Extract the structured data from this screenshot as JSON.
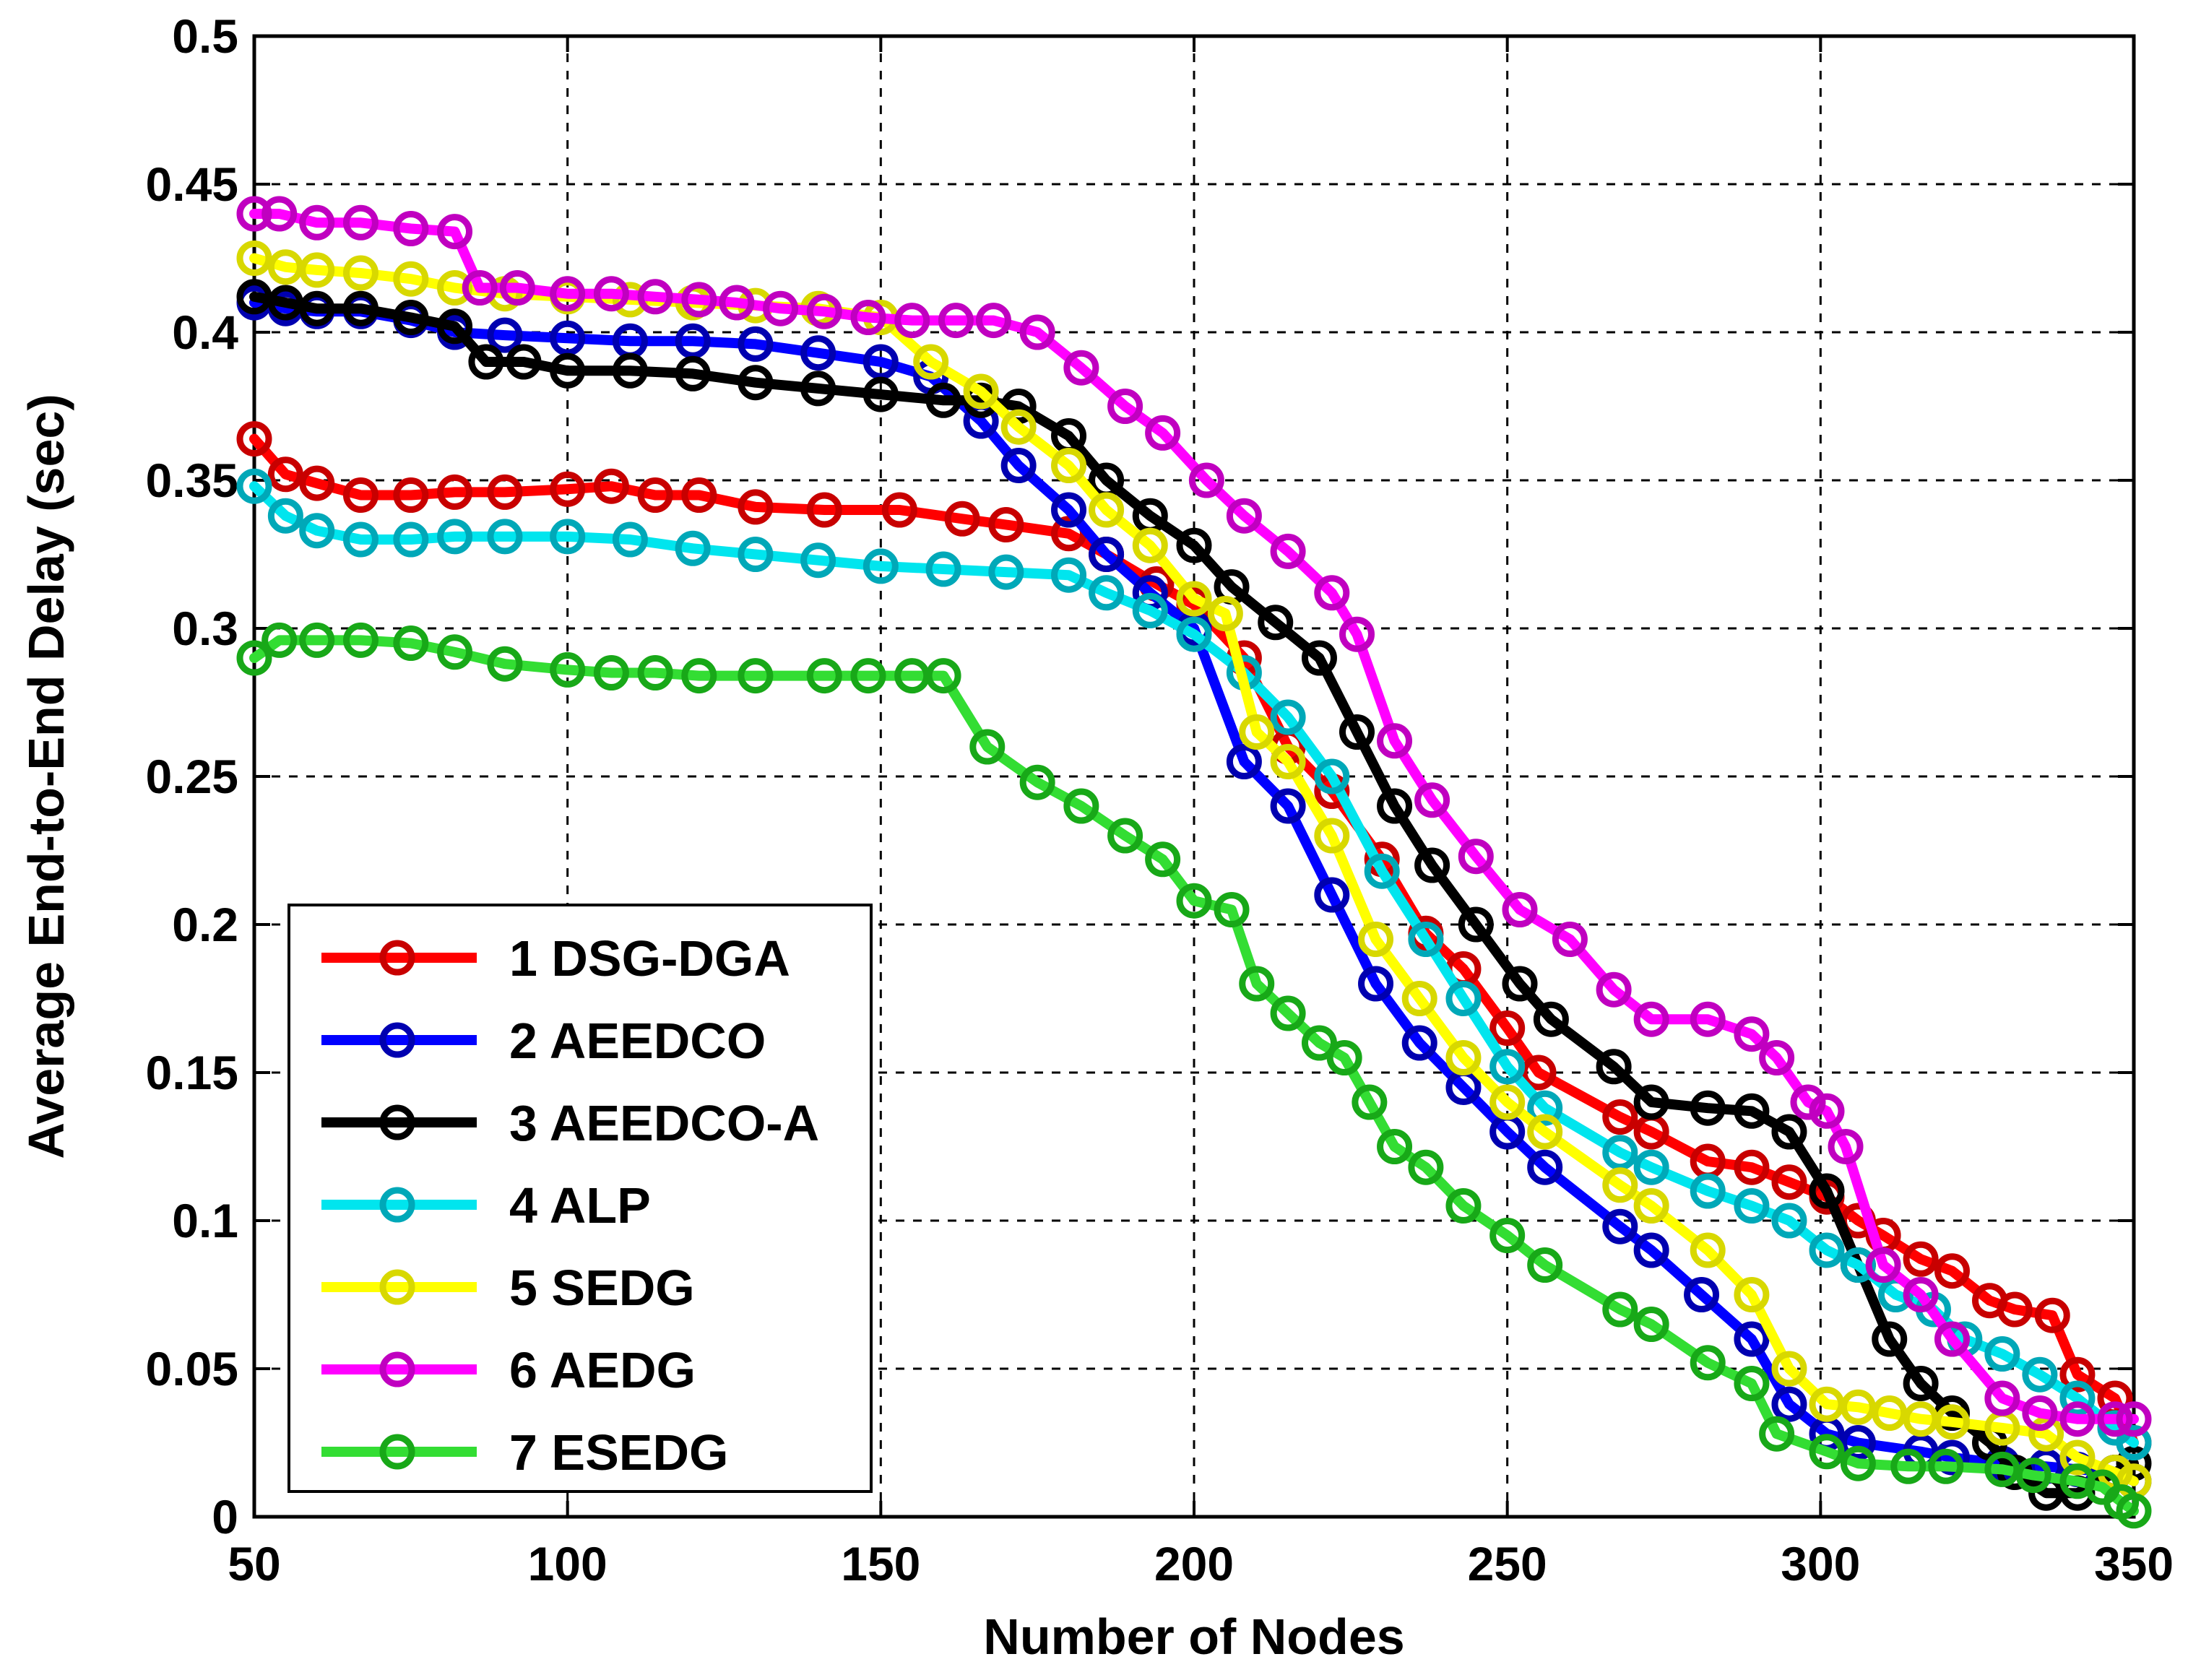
{
  "chart_data": {
    "type": "line",
    "title": "",
    "xlabel": "Number of Nodes",
    "ylabel": "Average End-to-End Delay (sec)",
    "xlim": [
      50,
      350
    ],
    "ylim": [
      0,
      0.5
    ],
    "grid": true,
    "legend_position": "bottom-left",
    "x_ticks": [
      50,
      100,
      150,
      200,
      250,
      300,
      350
    ],
    "x_tick_labels": [
      "50",
      "100",
      "150",
      "200",
      "250",
      "300",
      "350"
    ],
    "y_ticks": [
      0,
      0.05,
      0.1,
      0.15,
      0.2,
      0.25,
      0.3,
      0.35,
      0.4,
      0.45,
      0.5
    ],
    "y_tick_labels": [
      "0",
      "0.05",
      "0.1",
      "0.15",
      "0.2",
      "0.25",
      "0.3",
      "0.35",
      "0.4",
      "0.45",
      "0.5"
    ],
    "series": [
      {
        "name": "1 DSG-DGA",
        "color": "#ff0000",
        "x": [
          50,
          55,
          60,
          67,
          75,
          82,
          90,
          100,
          107,
          114,
          121,
          130,
          141,
          153,
          163,
          170,
          180,
          186,
          194,
          200,
          208,
          215,
          222,
          230,
          237,
          243,
          250,
          255,
          268,
          273,
          282,
          289,
          295,
          301,
          306,
          310,
          316,
          321,
          327,
          331,
          337,
          341,
          347,
          350
        ],
        "y": [
          0.364,
          0.352,
          0.349,
          0.345,
          0.345,
          0.346,
          0.346,
          0.347,
          0.348,
          0.345,
          0.345,
          0.341,
          0.34,
          0.34,
          0.337,
          0.335,
          0.332,
          0.325,
          0.315,
          0.308,
          0.29,
          0.26,
          0.245,
          0.222,
          0.197,
          0.185,
          0.165,
          0.15,
          0.135,
          0.13,
          0.12,
          0.118,
          0.113,
          0.108,
          0.1,
          0.095,
          0.087,
          0.083,
          0.073,
          0.07,
          0.068,
          0.048,
          0.04,
          0.025
        ]
      },
      {
        "name": "2 AEEDCO",
        "color": "#0000ff",
        "x": [
          50,
          55,
          60,
          67,
          75,
          82,
          90,
          100,
          110,
          120,
          130,
          140,
          150,
          158,
          166,
          172,
          180,
          186,
          193,
          200,
          208,
          215,
          222,
          229,
          236,
          243,
          250,
          256,
          268,
          273,
          281,
          289,
          295,
          301,
          306,
          316,
          321,
          329,
          336,
          341,
          347,
          350
        ],
        "y": [
          0.41,
          0.408,
          0.407,
          0.407,
          0.404,
          0.4,
          0.399,
          0.398,
          0.397,
          0.397,
          0.396,
          0.393,
          0.39,
          0.385,
          0.37,
          0.355,
          0.34,
          0.325,
          0.312,
          0.3,
          0.255,
          0.24,
          0.21,
          0.18,
          0.16,
          0.145,
          0.13,
          0.118,
          0.098,
          0.09,
          0.075,
          0.06,
          0.038,
          0.028,
          0.025,
          0.022,
          0.02,
          0.018,
          0.017,
          0.016,
          0.015,
          0.012
        ]
      },
      {
        "name": "3 AEEDCO-A",
        "color": "#000000",
        "x": [
          50,
          55,
          60,
          67,
          75,
          82,
          87,
          93,
          100,
          110,
          120,
          130,
          140,
          150,
          160,
          166,
          172,
          180,
          186,
          193,
          200,
          206,
          213,
          220,
          226,
          232,
          238,
          245,
          252,
          257,
          267,
          273,
          282,
          289,
          295,
          301,
          306,
          311,
          316,
          321,
          327,
          331,
          336,
          341,
          347,
          350
        ],
        "y": [
          0.412,
          0.41,
          0.408,
          0.408,
          0.405,
          0.402,
          0.39,
          0.39,
          0.387,
          0.387,
          0.386,
          0.383,
          0.381,
          0.379,
          0.377,
          0.377,
          0.375,
          0.365,
          0.35,
          0.338,
          0.328,
          0.314,
          0.302,
          0.29,
          0.265,
          0.24,
          0.22,
          0.2,
          0.18,
          0.168,
          0.152,
          0.14,
          0.138,
          0.137,
          0.13,
          0.11,
          0.085,
          0.06,
          0.045,
          0.035,
          0.025,
          0.015,
          0.008,
          0.008,
          0.015,
          0.018
        ]
      },
      {
        "name": "4 ALP",
        "color": "#00e5ee",
        "x": [
          50,
          55,
          60,
          67,
          75,
          82,
          90,
          100,
          110,
          120,
          130,
          140,
          150,
          160,
          170,
          180,
          186,
          193,
          200,
          208,
          215,
          222,
          230,
          237,
          243,
          250,
          256,
          268,
          273,
          282,
          289,
          295,
          301,
          306,
          312,
          318,
          323,
          329,
          335,
          341,
          347,
          350
        ],
        "y": [
          0.348,
          0.338,
          0.333,
          0.33,
          0.33,
          0.331,
          0.331,
          0.331,
          0.33,
          0.327,
          0.325,
          0.323,
          0.321,
          0.32,
          0.319,
          0.318,
          0.312,
          0.306,
          0.298,
          0.285,
          0.27,
          0.25,
          0.218,
          0.195,
          0.175,
          0.152,
          0.138,
          0.123,
          0.118,
          0.11,
          0.105,
          0.1,
          0.09,
          0.085,
          0.075,
          0.07,
          0.06,
          0.055,
          0.048,
          0.04,
          0.03,
          0.025
        ]
      },
      {
        "name": "5 SEDG",
        "color": "#ffff00",
        "x": [
          50,
          55,
          60,
          67,
          75,
          82,
          90,
          100,
          110,
          120,
          130,
          140,
          150,
          158,
          166,
          172,
          180,
          186,
          193,
          200,
          205,
          210,
          215,
          222,
          229,
          236,
          243,
          250,
          256,
          268,
          273,
          282,
          289,
          295,
          301,
          306,
          311,
          316,
          321,
          329,
          336,
          341,
          347,
          350
        ],
        "y": [
          0.425,
          0.422,
          0.421,
          0.42,
          0.418,
          0.415,
          0.413,
          0.412,
          0.411,
          0.41,
          0.409,
          0.408,
          0.405,
          0.39,
          0.38,
          0.368,
          0.355,
          0.34,
          0.328,
          0.31,
          0.305,
          0.265,
          0.255,
          0.23,
          0.195,
          0.175,
          0.155,
          0.14,
          0.13,
          0.112,
          0.105,
          0.09,
          0.075,
          0.05,
          0.038,
          0.037,
          0.035,
          0.033,
          0.032,
          0.03,
          0.028,
          0.02,
          0.015,
          0.012
        ]
      },
      {
        "name": "6 AEDG",
        "color": "#ff00ff",
        "x": [
          50,
          54,
          60,
          67,
          75,
          82,
          86,
          92,
          100,
          107,
          114,
          121,
          127,
          134,
          141,
          148,
          155,
          162,
          168,
          175,
          182,
          189,
          195,
          202,
          208,
          215,
          222,
          226,
          232,
          238,
          245,
          252,
          260,
          267,
          273,
          282,
          289,
          293,
          298,
          301,
          304,
          310,
          316,
          321,
          329,
          335,
          341,
          347,
          350
        ],
        "y": [
          0.44,
          0.44,
          0.437,
          0.437,
          0.435,
          0.434,
          0.415,
          0.415,
          0.413,
          0.413,
          0.412,
          0.411,
          0.41,
          0.408,
          0.407,
          0.405,
          0.404,
          0.404,
          0.404,
          0.4,
          0.388,
          0.375,
          0.366,
          0.35,
          0.338,
          0.326,
          0.312,
          0.298,
          0.262,
          0.242,
          0.223,
          0.205,
          0.195,
          0.178,
          0.168,
          0.168,
          0.163,
          0.155,
          0.14,
          0.137,
          0.125,
          0.085,
          0.075,
          0.06,
          0.04,
          0.035,
          0.033,
          0.033,
          0.033
        ]
      },
      {
        "name": "7 ESEDG",
        "color": "#33dd33",
        "x": [
          50,
          54,
          60,
          67,
          75,
          82,
          90,
          100,
          107,
          114,
          121,
          130,
          141,
          148,
          155,
          160,
          167,
          175,
          182,
          189,
          195,
          200,
          206,
          210,
          215,
          220,
          224,
          228,
          232,
          237,
          243,
          250,
          256,
          268,
          273,
          282,
          289,
          293,
          301,
          306,
          314,
          320,
          329,
          334,
          341,
          345,
          348,
          350
        ],
        "y": [
          0.29,
          0.296,
          0.296,
          0.296,
          0.295,
          0.292,
          0.288,
          0.286,
          0.285,
          0.285,
          0.284,
          0.284,
          0.284,
          0.284,
          0.284,
          0.284,
          0.26,
          0.248,
          0.24,
          0.23,
          0.222,
          0.208,
          0.205,
          0.18,
          0.17,
          0.16,
          0.155,
          0.14,
          0.125,
          0.118,
          0.105,
          0.095,
          0.085,
          0.07,
          0.065,
          0.052,
          0.045,
          0.028,
          0.022,
          0.018,
          0.017,
          0.017,
          0.016,
          0.014,
          0.012,
          0.01,
          0.005,
          0.002
        ]
      }
    ]
  }
}
